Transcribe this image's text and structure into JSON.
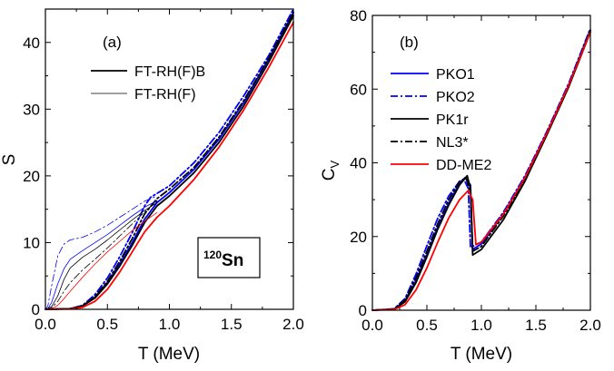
{
  "chart_data": [
    {
      "type": "line",
      "panel_label": "(a)",
      "xlabel": "T (MeV)",
      "ylabel": "S",
      "xlim": [
        0,
        2.0
      ],
      "ylim": [
        0,
        45
      ],
      "xticks": [
        0.0,
        0.5,
        1.0,
        1.5,
        2.0
      ],
      "xtick_labels": [
        "0.0",
        "0.5",
        "1.0",
        "1.5",
        "2.0"
      ],
      "yticks": [
        0,
        10,
        20,
        30,
        40
      ],
      "ytick_labels": [
        "0",
        "10",
        "20",
        "30",
        "40"
      ],
      "legend_position": "top-left",
      "legend": [
        {
          "label": "FT-RH(F)B",
          "style": "thick"
        },
        {
          "label": "FT-RH(F)",
          "style": "thin"
        }
      ],
      "annotation": {
        "mass": "120",
        "symbol": "Sn"
      },
      "series": [
        {
          "line": "thick",
          "color": "#0000ff",
          "dash": "solid",
          "x": [
            0,
            0.2,
            0.3,
            0.4,
            0.5,
            0.6,
            0.7,
            0.8,
            0.9,
            1.0,
            1.2,
            1.4,
            1.6,
            1.8,
            2.0
          ],
          "y": [
            0,
            0.1,
            0.5,
            1.8,
            4.0,
            6.8,
            10.0,
            13.5,
            16.0,
            17.5,
            21.0,
            25.5,
            31.0,
            37.5,
            44.5
          ]
        },
        {
          "line": "thick",
          "color": "#0000ff",
          "dash": "dashdot",
          "x": [
            0,
            0.2,
            0.3,
            0.4,
            0.5,
            0.6,
            0.7,
            0.8,
            0.85,
            1.0,
            1.2,
            1.4,
            1.6,
            1.8,
            2.0
          ],
          "y": [
            0,
            0.1,
            0.6,
            2.2,
            4.7,
            7.9,
            11.5,
            15.5,
            16.8,
            18.5,
            22.0,
            26.5,
            32.0,
            38.0,
            45.0
          ]
        },
        {
          "line": "thick",
          "color": "#000000",
          "dash": "solid",
          "x": [
            0,
            0.2,
            0.3,
            0.4,
            0.5,
            0.6,
            0.7,
            0.8,
            0.9,
            1.0,
            1.2,
            1.4,
            1.6,
            1.8,
            2.0
          ],
          "y": [
            0,
            0.1,
            0.5,
            1.7,
            3.8,
            6.5,
            9.6,
            13.0,
            15.5,
            17.0,
            20.5,
            25.0,
            30.5,
            37.0,
            44.0
          ]
        },
        {
          "line": "thick",
          "color": "#000000",
          "dash": "dashdot",
          "x": [
            0,
            0.2,
            0.3,
            0.4,
            0.5,
            0.6,
            0.7,
            0.8,
            0.9,
            1.0,
            1.2,
            1.4,
            1.6,
            1.8,
            2.0
          ],
          "y": [
            0,
            0.1,
            0.5,
            1.9,
            4.2,
            7.2,
            10.6,
            14.3,
            16.6,
            18.0,
            21.3,
            25.8,
            31.3,
            37.6,
            44.5
          ]
        },
        {
          "line": "thick",
          "color": "#ff0000",
          "dash": "solid",
          "x": [
            0,
            0.2,
            0.3,
            0.4,
            0.5,
            0.6,
            0.7,
            0.8,
            0.9,
            1.0,
            1.2,
            1.4,
            1.6,
            1.8,
            2.0
          ],
          "y": [
            0,
            0.05,
            0.3,
            1.2,
            3.0,
            5.6,
            8.6,
            11.6,
            13.8,
            15.5,
            19.5,
            24.3,
            29.9,
            36.2,
            43.0
          ]
        },
        {
          "line": "thin",
          "color": "#0000ff",
          "dash": "solid",
          "x": [
            0,
            0.02,
            0.05,
            0.1,
            0.15,
            0.2,
            0.3,
            0.4,
            0.5,
            0.6,
            0.7,
            0.8,
            0.9
          ],
          "y": [
            0,
            0.1,
            1.0,
            3.8,
            6.1,
            7.5,
            8.8,
            10.0,
            11.2,
            12.6,
            14.0,
            15.3,
            16.3
          ]
        },
        {
          "line": "thin",
          "color": "#0000ff",
          "dash": "dashdot",
          "x": [
            0,
            0.02,
            0.05,
            0.1,
            0.15,
            0.2,
            0.3,
            0.4,
            0.5,
            0.6,
            0.7,
            0.8,
            0.9
          ],
          "y": [
            0,
            0.5,
            3.5,
            8.0,
            9.8,
            10.4,
            10.8,
            11.6,
            12.6,
            13.8,
            15.0,
            16.2,
            17.0
          ]
        },
        {
          "line": "thin",
          "color": "#000000",
          "dash": "solid",
          "x": [
            0,
            0.05,
            0.1,
            0.15,
            0.2,
            0.3,
            0.4,
            0.5,
            0.6,
            0.7,
            0.8,
            0.9
          ],
          "y": [
            0,
            0.4,
            2.0,
            4.5,
            6.2,
            7.8,
            9.0,
            10.4,
            11.9,
            13.4,
            14.8,
            16.0
          ]
        },
        {
          "line": "thin",
          "color": "#000000",
          "dash": "dashdot",
          "x": [
            0,
            0.05,
            0.1,
            0.15,
            0.2,
            0.3,
            0.4,
            0.5,
            0.6,
            0.7,
            0.8,
            0.9
          ],
          "y": [
            0,
            0.2,
            1.2,
            2.7,
            4.0,
            5.9,
            7.5,
            9.2,
            11.0,
            12.8,
            14.6,
            16.2
          ]
        },
        {
          "line": "thin",
          "color": "#ff0000",
          "dash": "solid",
          "x": [
            0,
            0.05,
            0.1,
            0.15,
            0.2,
            0.3,
            0.4,
            0.5,
            0.6,
            0.7,
            0.8,
            0.9
          ],
          "y": [
            0,
            0.1,
            0.6,
            1.6,
            2.7,
            4.8,
            6.8,
            8.6,
            10.2,
            11.8,
            13.2,
            14.5
          ]
        }
      ]
    },
    {
      "type": "line",
      "panel_label": "(b)",
      "xlabel": "T (MeV)",
      "ylabel": "C",
      "ylabel_subscript": "V",
      "xlim": [
        0,
        2.0
      ],
      "ylim": [
        0,
        80
      ],
      "xticks": [
        0.0,
        0.5,
        1.0,
        1.5,
        2.0
      ],
      "xtick_labels": [
        "0.0",
        "0.5",
        "1.0",
        "1.5",
        "2.0"
      ],
      "yticks": [
        0,
        20,
        40,
        60,
        80
      ],
      "ytick_labels": [
        "0",
        "20",
        "40",
        "60",
        "80"
      ],
      "legend_position": "top-left",
      "series": [
        {
          "name": "PKO1",
          "color": "#0000ff",
          "dash": "solid",
          "x": [
            0,
            0.2,
            0.3,
            0.4,
            0.5,
            0.6,
            0.7,
            0.8,
            0.85,
            0.9,
            0.92,
            1.0,
            1.2,
            1.4,
            1.6,
            1.8,
            2.0
          ],
          "y": [
            0,
            0.3,
            2.5,
            8.0,
            15.0,
            22.5,
            29.0,
            34.5,
            36.0,
            34.0,
            16.5,
            18.0,
            26.0,
            36.0,
            48.0,
            61.0,
            76.0
          ]
        },
        {
          "name": "PKO2",
          "color": "#0000ff",
          "dash": "dashdot",
          "x": [
            0,
            0.2,
            0.3,
            0.4,
            0.5,
            0.6,
            0.7,
            0.8,
            0.84,
            0.88,
            0.9,
            1.0,
            1.2,
            1.4,
            1.6,
            1.8,
            2.0
          ],
          "y": [
            0,
            0.4,
            3.2,
            9.8,
            17.5,
            25.0,
            31.0,
            35.0,
            35.5,
            33.0,
            17.0,
            18.5,
            26.5,
            36.5,
            48.5,
            61.5,
            76.5
          ]
        },
        {
          "name": "PK1r",
          "color": "#000000",
          "dash": "solid",
          "x": [
            0,
            0.2,
            0.3,
            0.4,
            0.5,
            0.6,
            0.7,
            0.8,
            0.87,
            0.9,
            0.92,
            1.0,
            1.2,
            1.4,
            1.6,
            1.8,
            2.0
          ],
          "y": [
            0,
            0.3,
            2.3,
            7.5,
            14.5,
            22.0,
            28.5,
            34.0,
            36.5,
            33.0,
            15.0,
            16.5,
            24.5,
            35.0,
            47.5,
            60.5,
            75.5
          ]
        },
        {
          "name": "NL3*",
          "color": "#000000",
          "dash": "dashdot",
          "x": [
            0,
            0.2,
            0.3,
            0.4,
            0.5,
            0.6,
            0.7,
            0.8,
            0.86,
            0.9,
            0.92,
            1.0,
            1.2,
            1.4,
            1.6,
            1.8,
            2.0
          ],
          "y": [
            0,
            0.3,
            2.8,
            8.8,
            16.0,
            23.5,
            30.0,
            35.0,
            35.8,
            32.0,
            16.0,
            17.3,
            25.5,
            35.5,
            48.0,
            61.0,
            76.0
          ]
        },
        {
          "name": "DD-ME2",
          "color": "#ff0000",
          "dash": "solid",
          "x": [
            0,
            0.2,
            0.3,
            0.4,
            0.5,
            0.6,
            0.7,
            0.8,
            0.88,
            0.92,
            0.95,
            1.0,
            1.2,
            1.4,
            1.6,
            1.8,
            2.0
          ],
          "y": [
            0,
            0.2,
            1.5,
            5.5,
            11.5,
            18.5,
            25.0,
            30.0,
            32.5,
            30.0,
            17.8,
            18.5,
            26.0,
            36.0,
            48.0,
            61.0,
            75.5
          ]
        }
      ]
    }
  ]
}
